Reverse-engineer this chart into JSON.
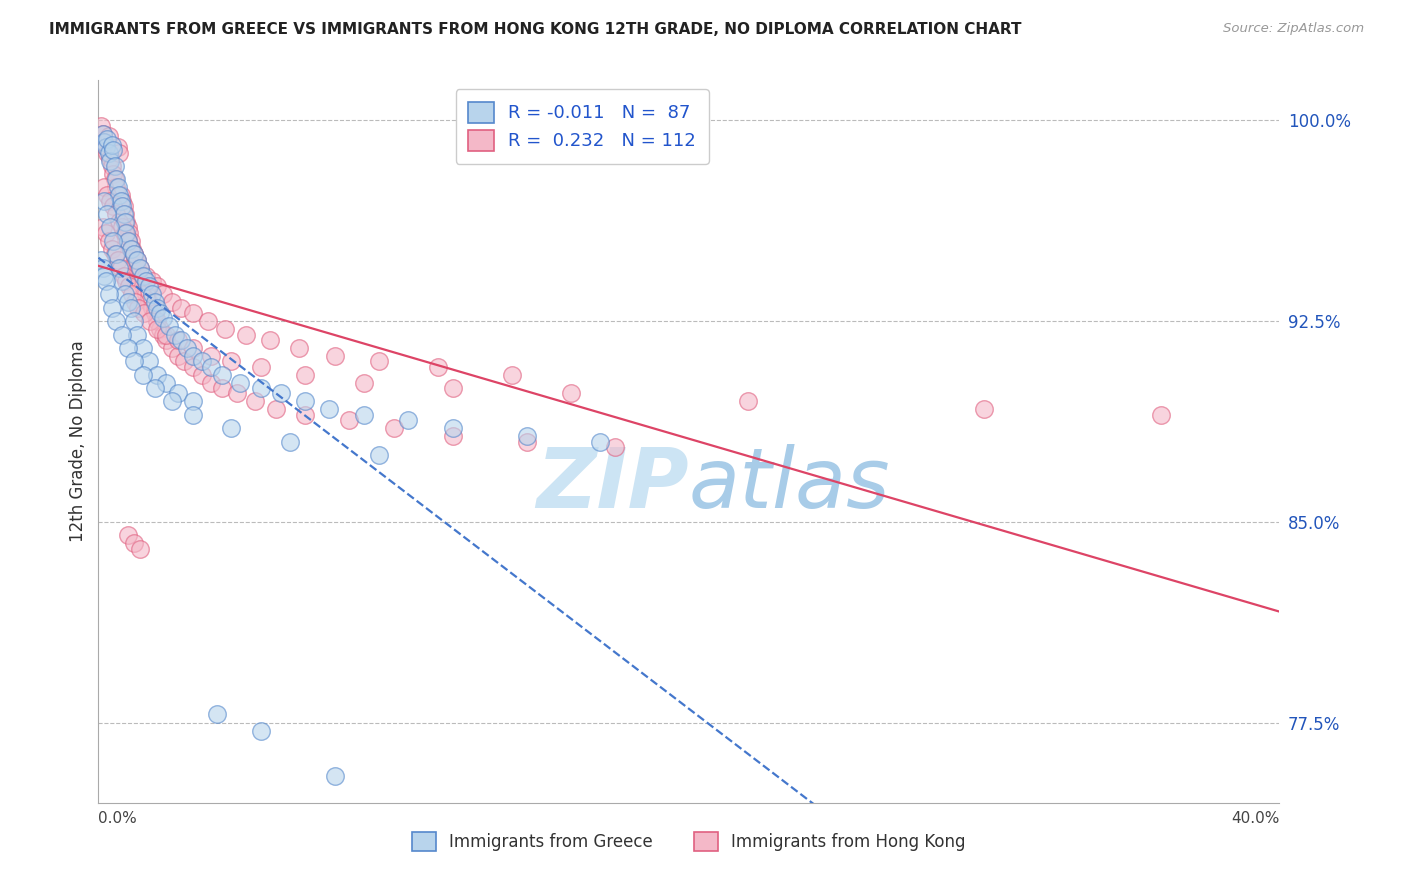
{
  "title": "IMMIGRANTS FROM GREECE VS IMMIGRANTS FROM HONG KONG 12TH GRADE, NO DIPLOMA CORRELATION CHART",
  "source": "Source: ZipAtlas.com",
  "ylabel_label": "12th Grade, No Diploma",
  "legend_blue_label": "Immigrants from Greece",
  "legend_pink_label": "Immigrants from Hong Kong",
  "xmin": 0.0,
  "xmax": 40.0,
  "ymin": 74.5,
  "ymax": 101.5,
  "yticks": [
    100.0,
    92.5,
    85.0,
    77.5
  ],
  "ytick_labels": [
    "100.0%",
    "92.5%",
    "85.0%",
    "77.5%"
  ],
  "blue_fill": "#b8d4ec",
  "pink_fill": "#f4b8c8",
  "blue_edge": "#5588cc",
  "pink_edge": "#e06080",
  "blue_line": "#4477cc",
  "pink_line": "#dd4466",
  "watermark_zip": "#cce4f4",
  "watermark_atlas": "#a8cce8",
  "Greece_x": [
    0.15,
    0.2,
    0.25,
    0.3,
    0.35,
    0.4,
    0.45,
    0.5,
    0.55,
    0.6,
    0.65,
    0.7,
    0.75,
    0.8,
    0.85,
    0.9,
    0.95,
    1.0,
    1.1,
    1.2,
    1.3,
    1.4,
    1.5,
    1.6,
    1.7,
    1.8,
    1.9,
    2.0,
    2.1,
    2.2,
    2.4,
    2.6,
    2.8,
    3.0,
    3.2,
    3.5,
    3.8,
    4.2,
    4.8,
    5.5,
    6.2,
    7.0,
    7.8,
    9.0,
    10.5,
    12.0,
    14.5,
    17.0,
    0.2,
    0.3,
    0.4,
    0.5,
    0.6,
    0.7,
    0.8,
    0.9,
    1.0,
    1.1,
    1.2,
    1.3,
    1.5,
    1.7,
    2.0,
    2.3,
    2.7,
    3.2,
    0.1,
    0.15,
    0.2,
    0.25,
    0.35,
    0.45,
    0.6,
    0.8,
    1.0,
    1.2,
    1.5,
    1.9,
    2.5,
    3.2,
    4.5,
    6.5,
    9.5,
    4.0,
    5.5,
    8.0
  ],
  "Greece_y": [
    99.5,
    99.2,
    99.0,
    99.3,
    98.8,
    98.5,
    99.1,
    98.9,
    98.3,
    97.8,
    97.5,
    97.2,
    97.0,
    96.8,
    96.5,
    96.2,
    95.8,
    95.5,
    95.2,
    95.0,
    94.8,
    94.5,
    94.2,
    94.0,
    93.8,
    93.5,
    93.2,
    93.0,
    92.8,
    92.6,
    92.3,
    92.0,
    91.8,
    91.5,
    91.2,
    91.0,
    90.8,
    90.5,
    90.2,
    90.0,
    89.8,
    89.5,
    89.2,
    89.0,
    88.8,
    88.5,
    88.2,
    88.0,
    97.0,
    96.5,
    96.0,
    95.5,
    95.0,
    94.5,
    94.0,
    93.5,
    93.2,
    93.0,
    92.5,
    92.0,
    91.5,
    91.0,
    90.5,
    90.2,
    89.8,
    89.5,
    94.8,
    94.5,
    94.2,
    94.0,
    93.5,
    93.0,
    92.5,
    92.0,
    91.5,
    91.0,
    90.5,
    90.0,
    89.5,
    89.0,
    88.5,
    88.0,
    87.5,
    77.8,
    77.2,
    75.5
  ],
  "HongKong_x": [
    0.1,
    0.15,
    0.2,
    0.25,
    0.3,
    0.35,
    0.4,
    0.45,
    0.5,
    0.55,
    0.6,
    0.65,
    0.7,
    0.75,
    0.8,
    0.85,
    0.9,
    0.95,
    1.0,
    1.05,
    1.1,
    1.15,
    1.2,
    1.25,
    1.3,
    1.35,
    1.4,
    1.5,
    1.6,
    1.7,
    1.8,
    1.9,
    2.0,
    2.1,
    2.2,
    2.3,
    2.5,
    2.7,
    2.9,
    3.2,
    3.5,
    3.8,
    4.2,
    4.7,
    5.3,
    6.0,
    7.0,
    8.5,
    10.0,
    12.0,
    14.5,
    17.5,
    0.2,
    0.3,
    0.4,
    0.5,
    0.6,
    0.7,
    0.8,
    0.9,
    1.0,
    1.1,
    1.2,
    1.3,
    1.4,
    1.6,
    1.8,
    2.0,
    2.2,
    2.5,
    2.8,
    3.2,
    3.7,
    4.3,
    5.0,
    5.8,
    6.8,
    8.0,
    9.5,
    11.5,
    14.0,
    0.15,
    0.25,
    0.35,
    0.45,
    0.55,
    0.65,
    0.75,
    0.85,
    0.95,
    1.05,
    1.15,
    1.25,
    1.35,
    1.55,
    1.75,
    2.0,
    2.3,
    2.7,
    3.2,
    3.8,
    4.5,
    5.5,
    7.0,
    9.0,
    12.0,
    16.0,
    22.0,
    30.0,
    36.0,
    1.0,
    1.2,
    1.4
  ],
  "HongKong_y": [
    99.8,
    99.5,
    99.2,
    99.0,
    98.8,
    99.4,
    98.6,
    98.3,
    98.0,
    97.8,
    97.5,
    99.0,
    98.8,
    97.2,
    97.0,
    96.8,
    96.5,
    96.2,
    96.0,
    95.8,
    95.5,
    95.2,
    95.0,
    94.8,
    94.5,
    94.2,
    94.0,
    93.8,
    93.5,
    93.2,
    93.0,
    92.8,
    92.5,
    92.2,
    92.0,
    91.8,
    91.5,
    91.2,
    91.0,
    90.8,
    90.5,
    90.2,
    90.0,
    89.8,
    89.5,
    89.2,
    89.0,
    88.8,
    88.5,
    88.2,
    88.0,
    87.8,
    97.5,
    97.2,
    97.0,
    96.8,
    96.5,
    96.2,
    96.0,
    95.8,
    95.5,
    95.2,
    95.0,
    94.8,
    94.5,
    94.2,
    94.0,
    93.8,
    93.5,
    93.2,
    93.0,
    92.8,
    92.5,
    92.2,
    92.0,
    91.8,
    91.5,
    91.2,
    91.0,
    90.8,
    90.5,
    96.0,
    95.8,
    95.5,
    95.2,
    95.0,
    94.8,
    94.5,
    94.2,
    94.0,
    93.8,
    93.5,
    93.2,
    93.0,
    92.8,
    92.5,
    92.2,
    92.0,
    91.8,
    91.5,
    91.2,
    91.0,
    90.8,
    90.5,
    90.2,
    90.0,
    89.8,
    89.5,
    89.2,
    89.0,
    84.5,
    84.2,
    84.0
  ]
}
